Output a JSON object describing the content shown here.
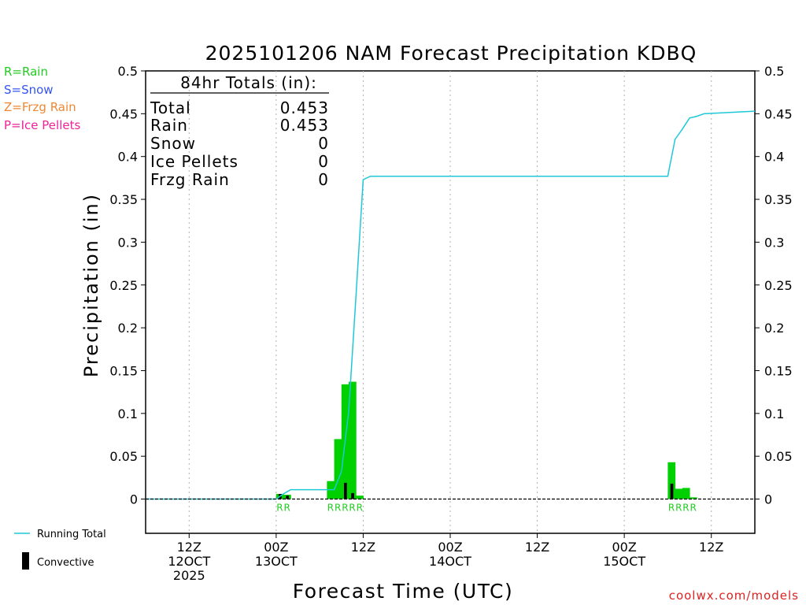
{
  "chart_data": {
    "type": "bar",
    "title": "2025101206 NAM Forecast Precipitation KDBQ",
    "xlabel": "Forecast Time (UTC)",
    "ylabel": "Precipitation (in)",
    "ylim": [
      -0.04,
      0.5
    ],
    "y_ticks": [
      0,
      0.05,
      0.1,
      0.15,
      0.2,
      0.25,
      0.3,
      0.35,
      0.4,
      0.45,
      0.5
    ],
    "y_tick_labels": [
      "0",
      "0.05",
      "0.1",
      "0.15",
      "0.2",
      "0.25",
      "0.3",
      "0.35",
      "0.4",
      "0.45",
      "0.5"
    ],
    "x_range_hours": [
      0,
      84
    ],
    "x_ticks": [
      {
        "hour": 6,
        "lines": [
          "12Z",
          "12OCT",
          "2025"
        ]
      },
      {
        "hour": 18,
        "lines": [
          "00Z",
          "13OCT"
        ]
      },
      {
        "hour": 30,
        "lines": [
          "12Z"
        ]
      },
      {
        "hour": 42,
        "lines": [
          "00Z",
          "14OCT"
        ]
      },
      {
        "hour": 54,
        "lines": [
          "12Z"
        ]
      },
      {
        "hour": 66,
        "lines": [
          "00Z",
          "15OCT"
        ]
      },
      {
        "hour": 78,
        "lines": [
          "12Z"
        ]
      }
    ],
    "grid": "vertical dotted",
    "precip_bars": [
      {
        "hour": 19,
        "rain": 0.006,
        "convective": 0.006
      },
      {
        "hour": 20,
        "rain": 0.005,
        "convective": 0.004
      },
      {
        "hour": 26,
        "rain": 0.021,
        "convective": 0.0
      },
      {
        "hour": 27,
        "rain": 0.07,
        "convective": 0.0
      },
      {
        "hour": 28,
        "rain": 0.134,
        "convective": 0.019
      },
      {
        "hour": 29,
        "rain": 0.137,
        "convective": 0.007
      },
      {
        "hour": 30,
        "rain": 0.004,
        "convective": 0.0
      },
      {
        "hour": 73,
        "rain": 0.043,
        "convective": 0.018
      },
      {
        "hour": 74,
        "rain": 0.012,
        "convective": 0.0
      },
      {
        "hour": 75,
        "rain": 0.013,
        "convective": 0.0
      },
      {
        "hour": 76,
        "rain": 0.002,
        "convective": 0.0
      }
    ],
    "running_total": {
      "hours": [
        0,
        18,
        19,
        20,
        21,
        26,
        27,
        28,
        29,
        30,
        31,
        72,
        73,
        74,
        75,
        76,
        77,
        84
      ],
      "values": [
        0,
        0,
        0.006,
        0.011,
        0.011,
        0.011,
        0.032,
        0.102,
        0.236,
        0.373,
        0.377,
        0.377,
        0.42,
        0.432,
        0.445,
        0.447,
        0.45,
        0.453
      ]
    },
    "ptype_labels": [
      {
        "hour": 19,
        "text": "R"
      },
      {
        "hour": 20,
        "text": "R"
      },
      {
        "hour": 26,
        "text": "R"
      },
      {
        "hour": 27,
        "text": "R"
      },
      {
        "hour": 28,
        "text": "R"
      },
      {
        "hour": 29,
        "text": "R"
      },
      {
        "hour": 30,
        "text": "R"
      },
      {
        "hour": 73,
        "text": "R"
      },
      {
        "hour": 74,
        "text": "R"
      },
      {
        "hour": 75,
        "text": "R"
      },
      {
        "hour": 76,
        "text": "R"
      }
    ],
    "totals_box": {
      "heading": "84hr Totals (in):",
      "rows": [
        {
          "label": "Total",
          "value": "0.453"
        },
        {
          "label": "Rain",
          "value": "0.453"
        },
        {
          "label": "Snow",
          "value": "0"
        },
        {
          "label": "Ice Pellets",
          "value": "0"
        },
        {
          "label": "Frzg Rain",
          "value": "0"
        }
      ]
    },
    "ptype_legend": [
      {
        "text": "R=Rain",
        "color": "#22cc22"
      },
      {
        "text": "S=Snow",
        "color": "#3355ee"
      },
      {
        "text": "Z=Frzg Rain",
        "color": "#ee8833"
      },
      {
        "text": "P=Ice Pellets",
        "color": "#ee2299"
      }
    ],
    "series_legend": [
      {
        "text": "Running Total",
        "color": "#1fc8d8"
      },
      {
        "text": "Convective",
        "color": "#000000"
      }
    ],
    "credit": "coolwx.com/models",
    "colors": {
      "rain_bar": "#00d000",
      "convective_bar": "#000000",
      "running_total": "#1fc8d8",
      "ptype_label": "#22cc22",
      "credit": "#dd2222"
    }
  }
}
